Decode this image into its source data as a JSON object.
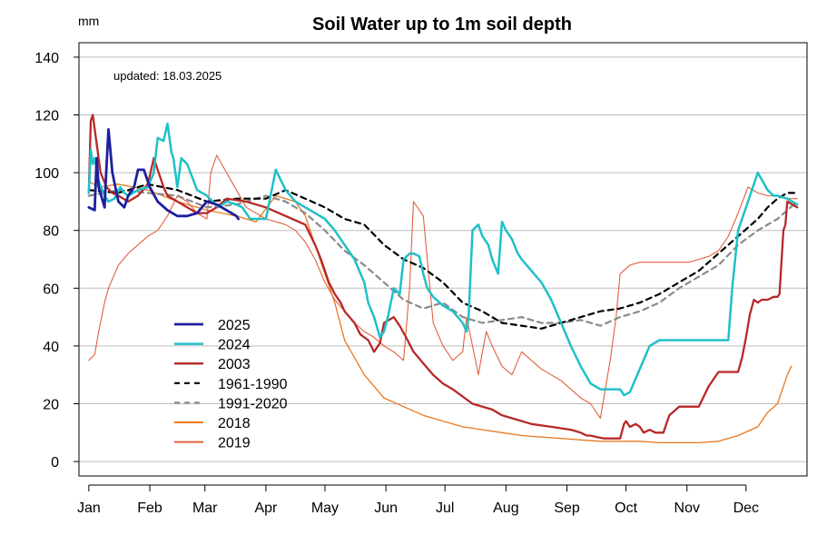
{
  "chart_data": {
    "type": "line",
    "title": "Soil Water up to 1m soil depth",
    "ylabel": "mm",
    "note": "updated: 18.03.2025",
    "ylim": [
      -5,
      145
    ],
    "yticks": [
      0,
      20,
      40,
      60,
      80,
      100,
      120,
      140
    ],
    "xlim": [
      -5,
      365
    ],
    "months": [
      "Jan",
      "Feb",
      "Mar",
      "Apr",
      "May",
      "Jun",
      "Jul",
      "Aug",
      "Sep",
      "Oct",
      "Nov",
      "Dec"
    ],
    "month_days": [
      0,
      31,
      59,
      90,
      120,
      151,
      181,
      212,
      243,
      273,
      304,
      334
    ],
    "grid": "horizontal",
    "legend_position": "bottom-left",
    "series": [
      {
        "name": "2025",
        "color": "#1f1f9e",
        "width": 2.8,
        "dash": "",
        "x": [
          0,
          3,
          4,
          5,
          8,
          9,
          10,
          12,
          15,
          18,
          20,
          23,
          25,
          28,
          31,
          35,
          40,
          45,
          50,
          55,
          60,
          65,
          70,
          75,
          76
        ],
        "y": [
          88,
          87,
          105,
          95,
          88,
          102,
          115,
          100,
          90,
          88,
          92,
          95,
          101,
          101,
          95,
          90,
          87,
          85,
          85,
          86,
          90,
          89,
          87,
          85,
          84
        ]
      },
      {
        "name": "2024",
        "color": "#20c0c8",
        "width": 2.5,
        "dash": "",
        "x": [
          0,
          1,
          2,
          3,
          5,
          8,
          10,
          13,
          16,
          18,
          20,
          25,
          30,
          33,
          35,
          38,
          40,
          42,
          43,
          44,
          45,
          47,
          50,
          55,
          60,
          63,
          66,
          70,
          75,
          78,
          80,
          82,
          85,
          90,
          95,
          100,
          105,
          110,
          115,
          120,
          125,
          130,
          135,
          140,
          142,
          145,
          148,
          150,
          152,
          155,
          158,
          160,
          163,
          165,
          168,
          170,
          172,
          175,
          180,
          185,
          190,
          192,
          193,
          195,
          198,
          200,
          203,
          205,
          208,
          210,
          212,
          215,
          218,
          220,
          225,
          230,
          235,
          240,
          245,
          250,
          255,
          260,
          265,
          270,
          272,
          275,
          280,
          285,
          290,
          300,
          310,
          320,
          325,
          327,
          330,
          335,
          340,
          345,
          348,
          350,
          355,
          360
        ],
        "y": [
          93,
          108,
          103,
          105,
          97,
          92,
          90,
          91,
          95,
          93,
          92,
          94,
          95,
          100,
          112,
          111,
          117,
          107,
          105,
          100,
          95,
          105,
          103,
          94,
          92,
          90,
          88,
          90,
          89,
          88,
          86,
          84,
          84,
          84,
          101,
          94,
          90,
          88,
          86,
          84,
          80,
          75,
          70,
          62,
          55,
          50,
          43,
          45,
          50,
          60,
          58,
          70,
          72,
          72,
          71,
          65,
          60,
          57,
          54,
          52,
          48,
          45,
          50,
          80,
          82,
          78,
          75,
          70,
          65,
          83,
          80,
          77,
          72,
          70,
          66,
          62,
          56,
          48,
          40,
          33,
          27,
          25,
          25,
          25,
          23,
          24,
          32,
          40,
          42,
          42,
          42,
          42,
          42,
          60,
          80,
          90,
          100,
          94,
          92,
          92,
          91,
          89
        ]
      },
      {
        "name": "2003",
        "color": "#b82828",
        "width": 2.3,
        "dash": "",
        "x": [
          0,
          1,
          2,
          4,
          6,
          9,
          12,
          15,
          20,
          25,
          30,
          33,
          35,
          38,
          40,
          45,
          50,
          55,
          60,
          65,
          70,
          80,
          90,
          100,
          110,
          115,
          118,
          122,
          125,
          128,
          130,
          135,
          138,
          142,
          145,
          148,
          150,
          155,
          158,
          162,
          165,
          170,
          175,
          180,
          185,
          195,
          205,
          210,
          215,
          225,
          235,
          245,
          250,
          253,
          255,
          258,
          262,
          265,
          270,
          272,
          273,
          275,
          278,
          280,
          282,
          285,
          288,
          290,
          292,
          295,
          300,
          304,
          305,
          308,
          310,
          315,
          320,
          325,
          330,
          332,
          334,
          336,
          338,
          340,
          342,
          345,
          348,
          350,
          351,
          353,
          354,
          355,
          360
        ],
        "y": [
          93,
          118,
          120,
          110,
          100,
          95,
          93,
          92,
          90,
          92,
          96,
          105,
          101,
          95,
          92,
          90,
          88,
          86,
          86,
          88,
          91,
          90,
          88,
          85,
          82,
          75,
          70,
          62,
          58,
          55,
          52,
          48,
          44,
          42,
          38,
          41,
          48,
          50,
          47,
          42,
          38,
          34,
          30,
          27,
          25,
          20,
          18,
          16,
          15,
          13,
          12,
          11,
          10,
          9,
          9,
          8.5,
          8,
          8,
          8,
          13,
          14,
          12,
          13,
          12,
          10,
          11,
          10,
          10,
          10,
          16,
          19,
          19,
          19,
          19,
          19,
          26,
          31,
          31,
          31,
          36,
          43,
          51,
          56,
          55,
          56,
          56,
          57,
          57,
          58,
          80,
          82,
          90,
          88
        ]
      },
      {
        "name": "1961-1990",
        "color": "#000000",
        "width": 2.2,
        "dash": "6,5",
        "x": [
          0,
          15,
          30,
          45,
          60,
          75,
          90,
          100,
          110,
          120,
          130,
          140,
          150,
          160,
          170,
          180,
          190,
          200,
          210,
          220,
          230,
          240,
          250,
          260,
          270,
          280,
          290,
          300,
          310,
          320,
          330,
          340,
          345,
          350,
          355,
          360
        ],
        "y": [
          94,
          93,
          96,
          94,
          90,
          91,
          91,
          94,
          91,
          88,
          84,
          82,
          75,
          70,
          67,
          62,
          55,
          52,
          48,
          47,
          46,
          48,
          50,
          52,
          53,
          55,
          58,
          62,
          66,
          72,
          78,
          84,
          88,
          91,
          93,
          93
        ]
      },
      {
        "name": "1991-2020",
        "color": "#8a8a8a",
        "width": 2.2,
        "dash": "6,5",
        "x": [
          0,
          15,
          30,
          45,
          60,
          75,
          90,
          100,
          110,
          120,
          130,
          140,
          150,
          160,
          170,
          180,
          190,
          200,
          210,
          220,
          230,
          240,
          250,
          260,
          270,
          280,
          290,
          300,
          310,
          320,
          330,
          340,
          350,
          360
        ],
        "y": [
          92,
          94,
          93,
          92,
          88,
          89,
          92,
          90,
          86,
          80,
          73,
          68,
          62,
          56,
          53,
          55,
          50,
          48,
          49,
          50,
          48,
          48,
          49,
          47,
          50,
          52,
          55,
          60,
          64,
          68,
          75,
          80,
          84,
          90
        ]
      },
      {
        "name": "2018",
        "color": "#e87820",
        "width": 1.3,
        "dash": "",
        "x": [
          0,
          5,
          15,
          30,
          45,
          60,
          75,
          85,
          95,
          100,
          105,
          110,
          115,
          120,
          125,
          130,
          140,
          150,
          160,
          170,
          180,
          190,
          200,
          210,
          220,
          230,
          240,
          250,
          260,
          270,
          280,
          290,
          300,
          310,
          320,
          330,
          340,
          345,
          350,
          355,
          357
        ],
        "y": [
          97,
          95,
          96,
          94,
          90,
          87,
          85,
          83,
          92,
          91,
          90,
          85,
          75,
          65,
          55,
          42,
          30,
          22,
          19,
          16,
          14,
          12,
          11,
          10,
          9,
          8.5,
          8,
          7.5,
          7,
          7,
          7,
          6.5,
          6.5,
          6.5,
          7,
          9,
          12,
          17,
          20,
          30,
          33
        ]
      },
      {
        "name": "2019",
        "color": "#e06040",
        "width": 1.1,
        "dash": "",
        "x": [
          0,
          3,
          5,
          8,
          10,
          15,
          20,
          25,
          30,
          35,
          40,
          45,
          50,
          55,
          60,
          62,
          65,
          70,
          75,
          80,
          85,
          90,
          100,
          105,
          110,
          115,
          120,
          125,
          130,
          135,
          140,
          145,
          150,
          155,
          160,
          163,
          165,
          170,
          172,
          175,
          180,
          185,
          190,
          192,
          195,
          198,
          200,
          202,
          205,
          210,
          215,
          220,
          225,
          230,
          235,
          240,
          245,
          250,
          255,
          258,
          260,
          265,
          268,
          270,
          275,
          280,
          282,
          285,
          290,
          295,
          300,
          305,
          310,
          315,
          320,
          325,
          330,
          335,
          340,
          345,
          350,
          355,
          360
        ],
        "y": [
          35,
          37,
          45,
          55,
          60,
          68,
          72,
          75,
          78,
          80,
          85,
          92,
          90,
          86,
          84,
          100,
          106,
          100,
          94,
          88,
          86,
          84,
          82,
          80,
          76,
          70,
          62,
          56,
          52,
          48,
          45,
          43,
          40,
          38,
          35,
          60,
          90,
          85,
          70,
          48,
          40,
          35,
          38,
          50,
          40,
          30,
          38,
          45,
          40,
          33,
          30,
          38,
          35,
          32,
          30,
          28,
          25,
          22,
          20,
          17,
          15,
          35,
          50,
          65,
          68,
          69,
          69,
          69,
          69,
          69,
          69,
          69,
          70,
          71,
          73,
          78,
          86,
          95,
          93,
          92,
          92,
          91,
          91
        ]
      }
    ]
  }
}
